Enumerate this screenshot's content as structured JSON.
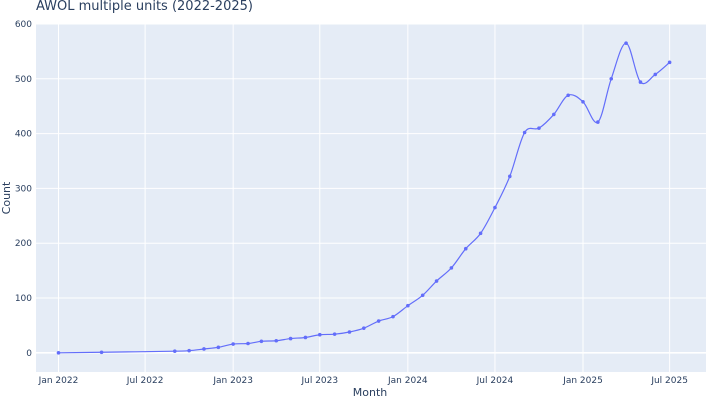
{
  "chart_data": {
    "type": "line",
    "title": "AWOL multiple units (2022-2025)",
    "xlabel": "Month",
    "ylabel": "Count",
    "ylim": [
      -35,
      600
    ],
    "xlim": [
      "2021-11-15",
      "2025-09-15"
    ],
    "grid": true,
    "legend": "none",
    "x_ticks": [
      {
        "label": "Jan 2022",
        "date": "2022-01-01"
      },
      {
        "label": "Jul 2022",
        "date": "2022-07-01"
      },
      {
        "label": "Jan 2023",
        "date": "2023-01-01"
      },
      {
        "label": "Jul 2023",
        "date": "2023-07-01"
      },
      {
        "label": "Jan 2024",
        "date": "2024-01-01"
      },
      {
        "label": "Jul 2024",
        "date": "2024-07-01"
      },
      {
        "label": "Jan 2025",
        "date": "2025-01-01"
      },
      {
        "label": "Jul 2025",
        "date": "2025-07-01"
      }
    ],
    "y_ticks": [
      0,
      100,
      200,
      300,
      400,
      500,
      600
    ],
    "series": [
      {
        "color": "#636efa",
        "points": [
          {
            "x": "2022-01-01",
            "y": 0
          },
          {
            "x": "2022-04-01",
            "y": 1
          },
          {
            "x": "2022-09-01",
            "y": 3
          },
          {
            "x": "2022-10-01",
            "y": 4
          },
          {
            "x": "2022-11-01",
            "y": 7
          },
          {
            "x": "2022-12-01",
            "y": 10
          },
          {
            "x": "2023-01-01",
            "y": 16
          },
          {
            "x": "2023-02-01",
            "y": 17
          },
          {
            "x": "2023-03-01",
            "y": 21
          },
          {
            "x": "2023-04-01",
            "y": 22
          },
          {
            "x": "2023-05-01",
            "y": 26
          },
          {
            "x": "2023-06-01",
            "y": 28
          },
          {
            "x": "2023-07-01",
            "y": 33
          },
          {
            "x": "2023-08-01",
            "y": 34
          },
          {
            "x": "2023-09-01",
            "y": 38
          },
          {
            "x": "2023-10-01",
            "y": 45
          },
          {
            "x": "2023-11-01",
            "y": 58
          },
          {
            "x": "2023-12-01",
            "y": 66
          },
          {
            "x": "2024-01-01",
            "y": 86
          },
          {
            "x": "2024-02-01",
            "y": 105
          },
          {
            "x": "2024-03-01",
            "y": 131
          },
          {
            "x": "2024-04-01",
            "y": 155
          },
          {
            "x": "2024-05-01",
            "y": 190
          },
          {
            "x": "2024-06-01",
            "y": 218
          },
          {
            "x": "2024-07-01",
            "y": 265
          },
          {
            "x": "2024-08-01",
            "y": 322
          },
          {
            "x": "2024-09-01",
            "y": 402
          },
          {
            "x": "2024-10-01",
            "y": 410
          },
          {
            "x": "2024-11-01",
            "y": 435
          },
          {
            "x": "2024-12-01",
            "y": 470
          },
          {
            "x": "2025-01-01",
            "y": 458
          },
          {
            "x": "2025-02-01",
            "y": 421
          },
          {
            "x": "2025-03-01",
            "y": 500
          },
          {
            "x": "2025-04-01",
            "y": 565
          },
          {
            "x": "2025-05-01",
            "y": 494
          },
          {
            "x": "2025-06-01",
            "y": 508
          },
          {
            "x": "2025-07-01",
            "y": 530
          }
        ]
      }
    ]
  }
}
